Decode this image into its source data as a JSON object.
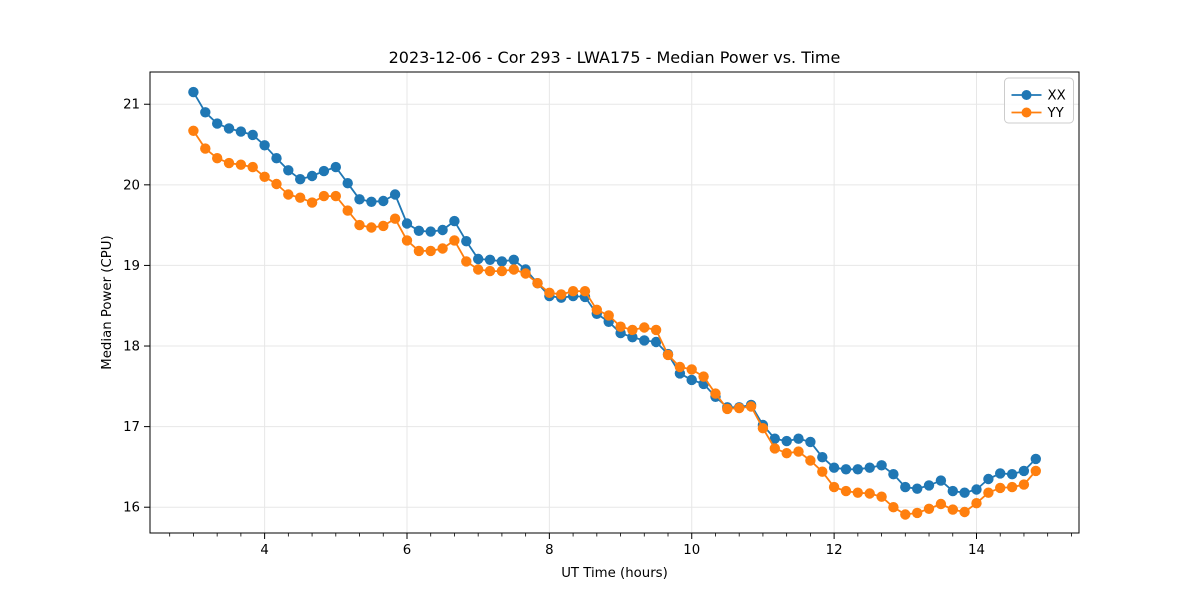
{
  "figure": {
    "title": "2023-12-06 - Cor 293 - LWA175 - Median Power vs. Time"
  },
  "chart_data": {
    "type": "line",
    "title": "2023-12-06 - Cor 293 - LWA175 - Median Power vs. Time",
    "xlabel": "UT Time (hours)",
    "ylabel": "Median Power (CPU)",
    "xlim": [
      2.39,
      15.44
    ],
    "ylim": [
      15.68,
      21.4
    ],
    "x_ticks": [
      4,
      6,
      8,
      10,
      12,
      14
    ],
    "y_ticks": [
      16,
      17,
      18,
      19,
      20,
      21
    ],
    "x_minor_interval": 0.33333,
    "grid": true,
    "grid_color": "#e7e7e7",
    "legend": {
      "position": "upper right",
      "entries": [
        "XX",
        "YY"
      ]
    },
    "x_start": 3.0,
    "x_step": 0.166667,
    "series": [
      {
        "name": "XX",
        "color": "#1f77b4",
        "values": [
          21.15,
          20.9,
          20.76,
          20.7,
          20.66,
          20.62,
          20.49,
          20.33,
          20.18,
          20.07,
          20.11,
          20.17,
          20.22,
          20.02,
          19.82,
          19.79,
          19.8,
          19.88,
          19.52,
          19.43,
          19.42,
          19.44,
          19.55,
          19.3,
          19.08,
          19.07,
          19.05,
          19.07,
          18.95,
          18.78,
          18.62,
          18.6,
          18.62,
          18.61,
          18.4,
          18.3,
          18.16,
          18.11,
          18.07,
          18.05,
          17.9,
          17.66,
          17.58,
          17.53,
          17.37,
          17.24,
          17.24,
          17.27,
          17.02,
          16.85,
          16.82,
          16.85,
          16.81,
          16.62,
          16.49,
          16.47,
          16.47,
          16.49,
          16.52,
          16.41,
          16.25,
          16.23,
          16.27,
          16.33,
          16.2,
          16.18,
          16.22,
          16.35,
          16.42,
          16.41,
          16.45,
          16.6
        ]
      },
      {
        "name": "YY",
        "color": "#ff7f0e",
        "values": [
          20.67,
          20.45,
          20.33,
          20.27,
          20.25,
          20.22,
          20.1,
          20.01,
          19.88,
          19.84,
          19.78,
          19.86,
          19.86,
          19.68,
          19.5,
          19.47,
          19.49,
          19.58,
          19.31,
          19.18,
          19.18,
          19.21,
          19.31,
          19.05,
          18.95,
          18.93,
          18.93,
          18.95,
          18.9,
          18.78,
          18.66,
          18.64,
          18.68,
          18.68,
          18.45,
          18.38,
          18.24,
          18.2,
          18.23,
          18.2,
          17.89,
          17.74,
          17.71,
          17.62,
          17.41,
          17.22,
          17.23,
          17.25,
          16.98,
          16.73,
          16.67,
          16.69,
          16.58,
          16.44,
          16.25,
          16.2,
          16.18,
          16.17,
          16.13,
          16.0,
          15.91,
          15.93,
          15.98,
          16.04,
          15.97,
          15.94,
          16.05,
          16.18,
          16.24,
          16.25,
          16.28,
          16.45
        ]
      }
    ]
  }
}
